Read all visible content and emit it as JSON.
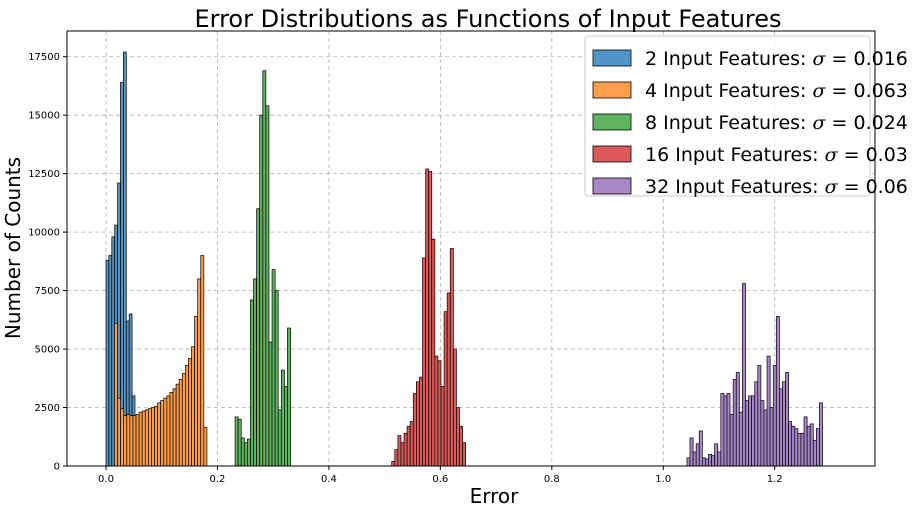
{
  "chart_data": {
    "type": "bar",
    "title": "Error Distributions as Functions of Input Features",
    "xlabel": "Error",
    "ylabel": "Number of Counts",
    "xlim": [
      -0.07,
      1.38
    ],
    "ylim": [
      0,
      18600
    ],
    "xticks": [
      0.0,
      0.2,
      0.4,
      0.6,
      0.8,
      1.0,
      1.2
    ],
    "xtick_labels": [
      "0.0",
      "0.2",
      "0.4",
      "0.6",
      "0.8",
      "1.0",
      "1.2"
    ],
    "yticks": [
      0,
      2500,
      5000,
      7500,
      10000,
      12500,
      15000,
      17500
    ],
    "ytick_labels": [
      "0",
      "2500",
      "5000",
      "7500",
      "10000",
      "12500",
      "15000",
      "17500"
    ],
    "grid": true,
    "legend_position": "top-right",
    "series": [
      {
        "name": "2 Input Features: ",
        "sigma": "0.016",
        "color": "#5294c5",
        "bin_start": 0.0,
        "bin_width": 0.0052,
        "values": [
          8800,
          9000,
          9800,
          10300,
          12100,
          16400,
          17700,
          6200,
          6500,
          3000
        ]
      },
      {
        "name": "4 Input Features: ",
        "sigma": "0.063",
        "color": "#ff9e4a",
        "bin_start": 0.0152,
        "bin_width": 0.00553,
        "values": [
          6100,
          2900,
          2450,
          2150,
          2200,
          2150,
          2150,
          2200,
          2300,
          2350,
          2400,
          2450,
          2500,
          2550,
          2700,
          2800,
          2900,
          3000,
          3150,
          3300,
          3500,
          3700,
          3950,
          4300,
          4600,
          5100,
          6400,
          8000,
          9000,
          1650
        ]
      },
      {
        "name": "8 Input Features: ",
        "sigma": "0.024",
        "color": "#60b35f",
        "bin_start": 0.2316,
        "bin_width": 0.00553,
        "values": [
          2100,
          2000,
          1200,
          1000,
          1150,
          7100,
          8000,
          11000,
          15000,
          16900,
          15400,
          5300,
          8400,
          7500,
          2400,
          4100,
          3400,
          5900
        ]
      },
      {
        "name": "16 Input Features: ",
        "sigma": "0.03",
        "color": "#dd5a5a",
        "bin_start": 0.5127,
        "bin_width": 0.00553,
        "values": [
          200,
          700,
          1300,
          1000,
          1400,
          1700,
          1900,
          3100,
          3600,
          3800,
          8900,
          12700,
          12600,
          9700,
          4700,
          4500,
          3400,
          6600,
          7400,
          9300,
          5000,
          2500,
          1700,
          1000
        ]
      },
      {
        "name": "32 Input Features: ",
        "sigma": "0.06",
        "color": "#a887c9",
        "bin_start": 1.0425,
        "bin_width": 0.00553,
        "values": [
          350,
          1200,
          600,
          950,
          1500,
          350,
          300,
          500,
          450,
          950,
          600,
          3100,
          3000,
          3100,
          2200,
          3700,
          4000,
          2300,
          7800,
          2800,
          3000,
          3000,
          3600,
          4300,
          2800,
          2400,
          4700,
          2500,
          4300,
          6400,
          3300,
          3600,
          4000,
          1900,
          1700,
          1600,
          1400,
          1400,
          2100,
          1700,
          1800,
          1100,
          1600,
          2700
        ]
      }
    ]
  }
}
